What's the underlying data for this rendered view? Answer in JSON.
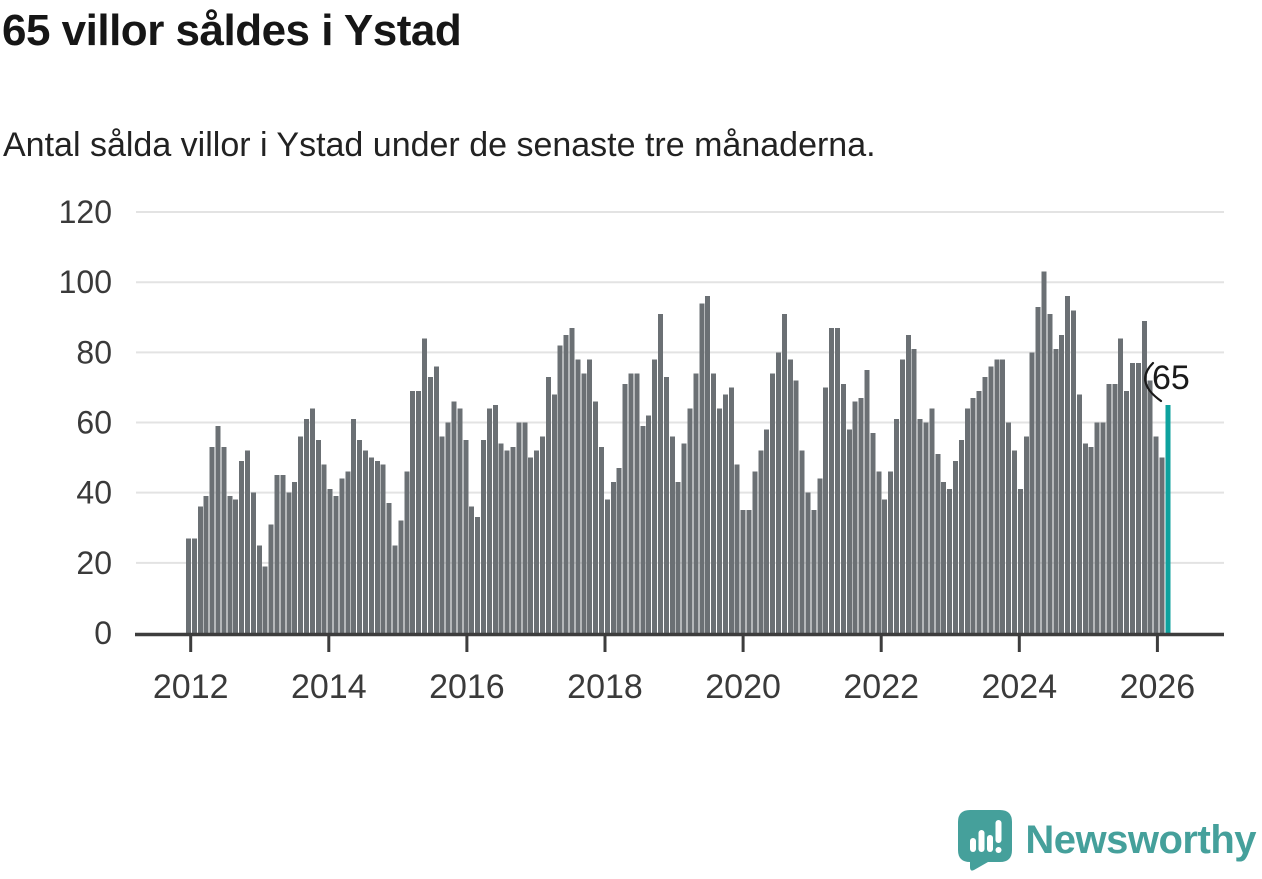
{
  "header": {
    "title": "65 villor såldes i Ystad",
    "subtitle": "Antal sålda villor i Ystad under de senaste tre månaderna."
  },
  "chart_data": {
    "type": "bar",
    "title": "65 villor såldes i Ystad",
    "subtitle": "Antal sålda villor i Ystad under de senaste tre månaderna.",
    "xlabel": "",
    "ylabel": "",
    "x_start_year": 2012,
    "x_end_year": 2026,
    "x_tick_labels": [
      "2012",
      "2014",
      "2016",
      "2018",
      "2020",
      "2022",
      "2024",
      "2026"
    ],
    "y_ticks": [
      0,
      20,
      40,
      60,
      80,
      100,
      120
    ],
    "ylim": [
      0,
      120
    ],
    "grid": true,
    "legend": false,
    "frequency": "monthly (rolling 3-month count)",
    "series": [
      {
        "name": "Antal sålda villor",
        "values": [
          27,
          27,
          36,
          39,
          53,
          59,
          53,
          39,
          38,
          49,
          52,
          40,
          25,
          19,
          31,
          45,
          45,
          40,
          43,
          56,
          61,
          64,
          55,
          48,
          41,
          39,
          44,
          46,
          61,
          55,
          52,
          50,
          49,
          48,
          37,
          25,
          32,
          46,
          69,
          69,
          84,
          73,
          76,
          56,
          60,
          66,
          64,
          55,
          36,
          33,
          55,
          64,
          65,
          54,
          52,
          53,
          60,
          60,
          50,
          52,
          56,
          73,
          68,
          82,
          85,
          87,
          78,
          74,
          78,
          66,
          53,
          38,
          43,
          47,
          71,
          74,
          74,
          59,
          62,
          78,
          91,
          73,
          56,
          43,
          54,
          64,
          74,
          94,
          96,
          74,
          64,
          68,
          70,
          48,
          35,
          35,
          46,
          52,
          58,
          74,
          80,
          91,
          78,
          72,
          52,
          40,
          35,
          44,
          70,
          87,
          87,
          71,
          58,
          66,
          67,
          75,
          57,
          46,
          38,
          46,
          61,
          78,
          85,
          81,
          61,
          60,
          64,
          51,
          43,
          41,
          49,
          55,
          64,
          67,
          69,
          73,
          76,
          78,
          78,
          60,
          52,
          41,
          56,
          80,
          93,
          103,
          91,
          81,
          85,
          96,
          92,
          68,
          54,
          53,
          60,
          60,
          71,
          71,
          84,
          69,
          77,
          77,
          89,
          72,
          56,
          50,
          65
        ]
      }
    ],
    "highlight": {
      "position": "last",
      "value": 65,
      "label": "65",
      "color": "#0DA29E"
    },
    "colors": {
      "bar": "#6B7074",
      "highlight": "#0DA29E",
      "grid_line": "#E3E3E3",
      "axis_line": "#3D3D3D",
      "axis_label": "#3A3A3A",
      "annotation_text": "#1A1A1A"
    }
  },
  "footer": {
    "brand": "Newsworthy",
    "brand_color": "#45A09B"
  }
}
